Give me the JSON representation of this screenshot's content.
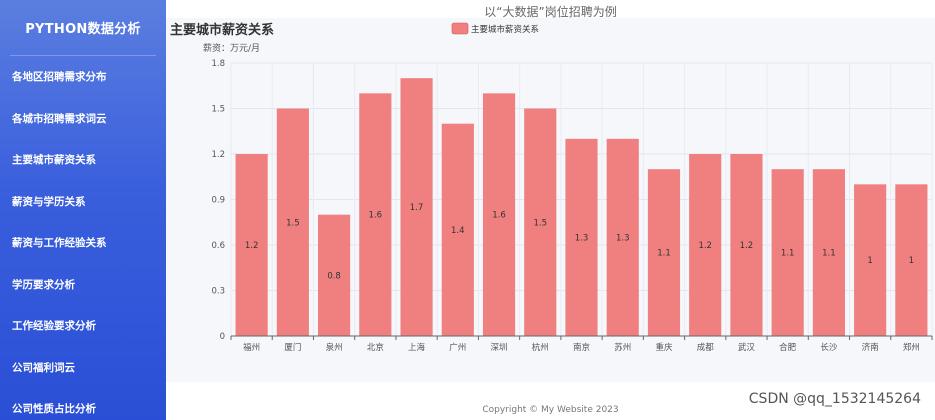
{
  "sidebar": {
    "brand": "PYTHON数据分析",
    "items": [
      {
        "label": "各地区招聘需求分布"
      },
      {
        "label": "各城市招聘需求词云"
      },
      {
        "label": "主要城市薪资关系"
      },
      {
        "label": "薪资与学历关系"
      },
      {
        "label": "薪资与工作经验关系"
      },
      {
        "label": "学历要求分析"
      },
      {
        "label": "工作经验要求分析"
      },
      {
        "label": "公司福利词云"
      },
      {
        "label": "公司性质占比分析"
      }
    ]
  },
  "header": {
    "caption": "以“大数据”岗位招聘为例"
  },
  "footer": {
    "copyright": "Copyright © My Website 2023"
  },
  "watermark": "CSDN @qq_1532145264",
  "colors": {
    "bar": "#f08080",
    "sidebar_top": "#5b7ee0",
    "sidebar_bottom": "#2a4fd6"
  },
  "chart_data": {
    "type": "bar",
    "title": "主要城市薪资关系",
    "ylabel": "薪资：万元/月",
    "legend": "主要城市薪资关系",
    "legend_position": "top-center",
    "grid": true,
    "ylim": [
      0,
      1.8
    ],
    "yticks": [
      "0",
      "0.3",
      "0.6",
      "0.9",
      "1.2",
      "1.5",
      "1.8"
    ],
    "yticks_values": [
      0,
      0.3,
      0.6,
      0.9,
      1.2,
      1.5,
      1.8
    ],
    "categories": [
      "福州",
      "厦门",
      "泉州",
      "北京",
      "上海",
      "广州",
      "深圳",
      "杭州",
      "南京",
      "苏州",
      "重庆",
      "成都",
      "武汉",
      "合肥",
      "长沙",
      "济南",
      "郑州"
    ],
    "values": [
      1.2,
      1.5,
      0.8,
      1.6,
      1.7,
      1.4,
      1.6,
      1.5,
      1.3,
      1.3,
      1.1,
      1.2,
      1.2,
      1.1,
      1.1,
      1.0,
      1.0
    ],
    "data_labels": [
      "1.2",
      "1.5",
      "0.8",
      "1.6",
      "1.7",
      "1.4",
      "1.6",
      "1.5",
      "1.3",
      "1.3",
      "1.1",
      "1.2",
      "1.2",
      "1.1",
      "1.1",
      "1",
      "1"
    ]
  }
}
